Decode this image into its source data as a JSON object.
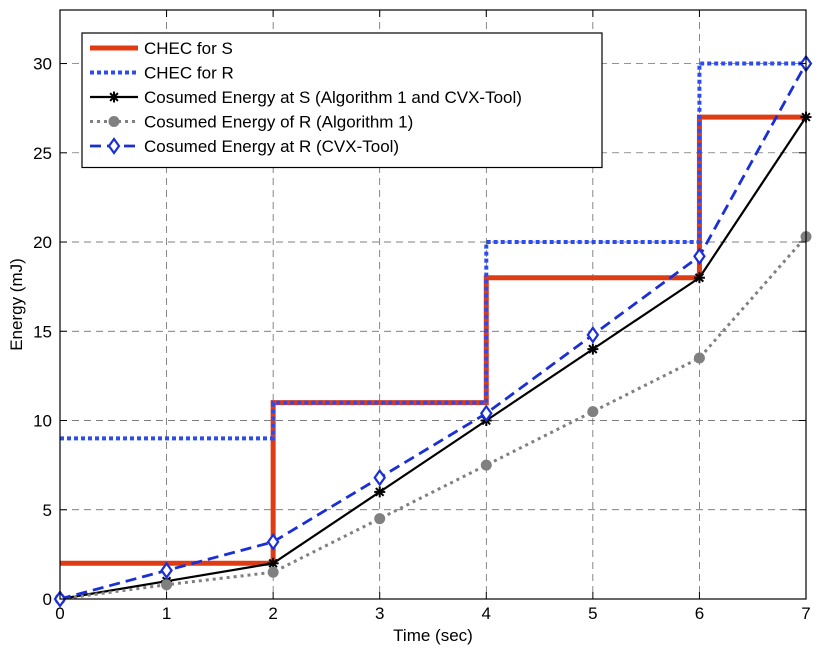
{
  "chart_data": {
    "type": "line",
    "title": "",
    "xlabel": "Time (sec)",
    "ylabel": "Energy (mJ)",
    "xlim": [
      0,
      7
    ],
    "ylim": [
      0,
      33
    ],
    "xticks": [
      0,
      1,
      2,
      3,
      4,
      5,
      6,
      7
    ],
    "yticks": [
      0,
      5,
      10,
      15,
      20,
      25,
      30
    ],
    "grid": true,
    "legend_position": "top-left",
    "series": [
      {
        "name": "CHEC for S",
        "kind": "step",
        "color": "#e03c14",
        "style": "solid",
        "marker": "none",
        "x": [
          0,
          2,
          2,
          4,
          4,
          6,
          6,
          7
        ],
        "y": [
          2,
          2,
          11,
          11,
          18,
          18,
          27,
          27
        ]
      },
      {
        "name": "CHEC for R",
        "kind": "step",
        "color": "#2c4bf0",
        "style": "dotted",
        "marker": "none",
        "x": [
          0,
          2,
          2,
          4,
          4,
          6,
          6,
          7
        ],
        "y": [
          9,
          9,
          11,
          11,
          20,
          20,
          30,
          30
        ]
      },
      {
        "name": "Cosumed Energy at S (Algorithm 1 and CVX-Tool)",
        "kind": "line",
        "color": "#000000",
        "style": "solid",
        "marker": "asterisk",
        "x": [
          0,
          1,
          2,
          3,
          4,
          5,
          6,
          7
        ],
        "y": [
          0,
          1,
          2,
          6,
          10,
          14,
          18,
          27
        ]
      },
      {
        "name": "Cosumed Energy of R (Algorithm 1)",
        "kind": "line",
        "color": "#808080",
        "style": "dotted",
        "marker": "circle",
        "x": [
          0,
          1,
          2,
          3,
          4,
          5,
          6,
          7
        ],
        "y": [
          0,
          0.8,
          1.5,
          4.5,
          7.5,
          10.5,
          13.5,
          20.3
        ]
      },
      {
        "name": "Cosumed Energy at R (CVX-Tool)",
        "kind": "line",
        "color": "#1a2fd6",
        "style": "dashed",
        "marker": "diamond",
        "x": [
          0,
          1,
          2,
          3,
          4,
          5,
          6,
          7
        ],
        "y": [
          0,
          1.6,
          3.2,
          6.8,
          10.4,
          14.8,
          19.2,
          30
        ]
      }
    ]
  }
}
